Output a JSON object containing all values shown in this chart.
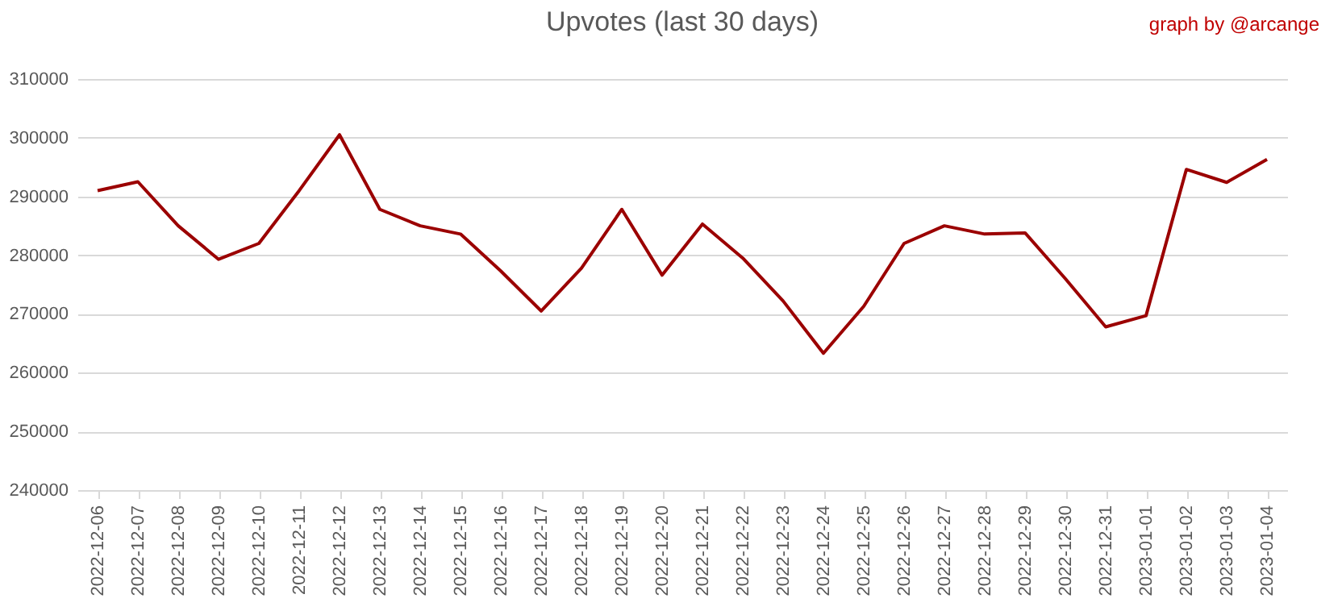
{
  "chart_data": {
    "type": "line",
    "title": "Upvotes (last 30 days)",
    "annotations": [
      "graph by @arcange"
    ],
    "categories": [
      "2022-12-06",
      "2022-12-07",
      "2022-12-08",
      "2022-12-09",
      "2022-12-10",
      "2022-12-11",
      "2022-12-12",
      "2022-12-13",
      "2022-12-14",
      "2022-12-15",
      "2022-12-16",
      "2022-12-17",
      "2022-12-18",
      "2022-12-19",
      "2022-12-20",
      "2022-12-21",
      "2022-12-22",
      "2022-12-23",
      "2022-12-24",
      "2022-12-25",
      "2022-12-26",
      "2022-12-27",
      "2022-12-28",
      "2022-12-29",
      "2022-12-30",
      "2022-12-31",
      "2023-01-01",
      "2023-01-02",
      "2023-01-03",
      "2023-01-04"
    ],
    "series": [
      {
        "color": "#9b0000",
        "values": [
          291000,
          292500,
          285000,
          279300,
          282000,
          291000,
          300500,
          287800,
          285000,
          283600,
          277300,
          270500,
          277800,
          287800,
          276600,
          285300,
          279500,
          272200,
          263300,
          271300,
          282000,
          285000,
          283600,
          283800,
          276000,
          267800,
          269700,
          294600,
          292400,
          296300
        ]
      }
    ],
    "ylim": [
      240000,
      310000
    ],
    "yticks": [
      240000,
      250000,
      260000,
      270000,
      280000,
      290000,
      300000,
      310000
    ],
    "grid": "y"
  }
}
